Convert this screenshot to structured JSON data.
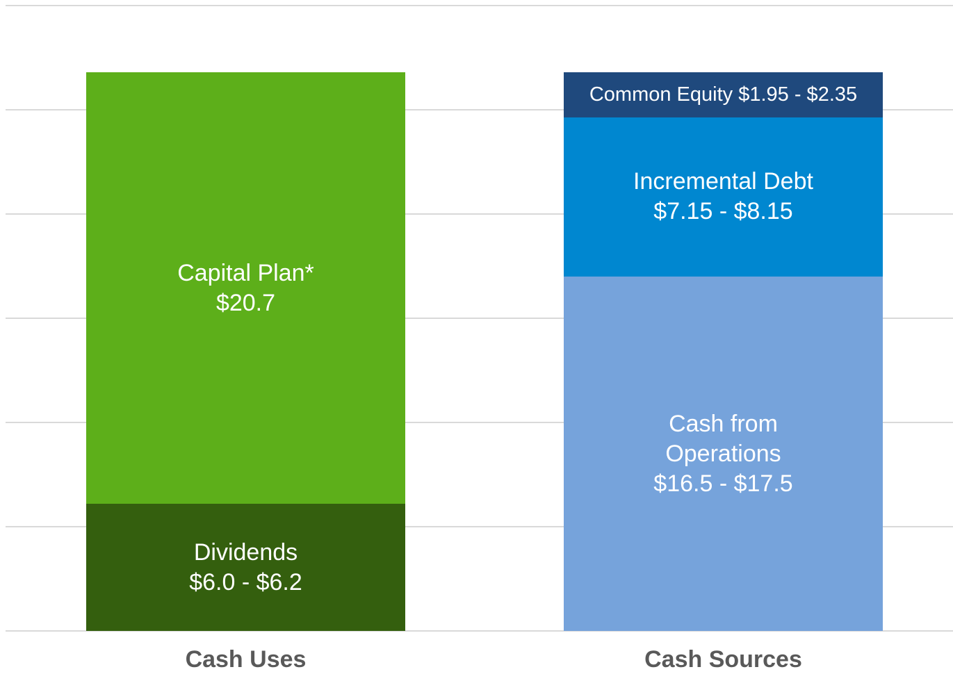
{
  "chart_data": {
    "type": "bar",
    "stacked": true,
    "categories": [
      "Cash Uses",
      "Cash Sources"
    ],
    "series": [
      {
        "name": "Dividends",
        "color": "#345f0e",
        "values": [
          6.1,
          null
        ],
        "value_labels": [
          "$6.0 - $6.2",
          null
        ]
      },
      {
        "name": "Capital Plan*",
        "color": "#5daf1a",
        "values": [
          20.7,
          null
        ],
        "value_labels": [
          "$20.7",
          null
        ]
      },
      {
        "name": "Cash from Operations",
        "color": "#76a3db",
        "values": [
          null,
          17
        ],
        "value_labels": [
          null,
          "$16.5 - $17.5"
        ]
      },
      {
        "name": "Incremental Debt",
        "color": "#0087d0",
        "values": [
          null,
          7.65
        ],
        "value_labels": [
          null,
          "$7.15 - $8.15"
        ]
      },
      {
        "name": "Common Equity",
        "color": "#1f497d",
        "values": [
          null,
          2.15
        ],
        "value_labels": [
          null,
          "$1.95 - $2.35"
        ]
      }
    ],
    "ylim": [
      0,
      30
    ],
    "yticks": [
      0,
      5,
      10,
      15,
      20,
      25,
      30
    ],
    "grid": true
  }
}
